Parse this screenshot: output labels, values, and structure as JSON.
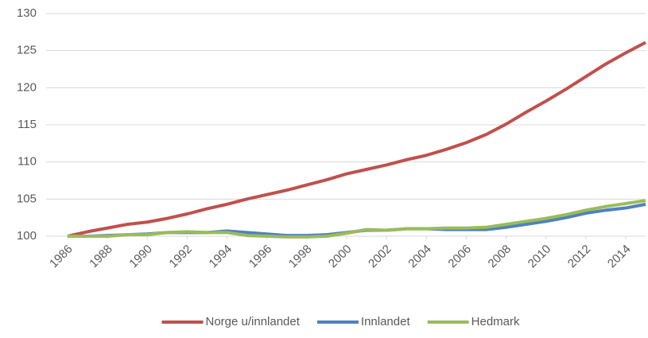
{
  "chart_data": {
    "type": "line",
    "x": [
      1986,
      1987,
      1988,
      1989,
      1990,
      1991,
      1992,
      1993,
      1994,
      1995,
      1996,
      1997,
      1998,
      1999,
      2000,
      2001,
      2002,
      2003,
      2004,
      2005,
      2006,
      2007,
      2008,
      2009,
      2010,
      2011,
      2012,
      2013,
      2014,
      2015
    ],
    "series": [
      {
        "name": "Norge u/innlandet",
        "color": "#c0504d",
        "values": [
          100,
          100.6,
          101.1,
          101.6,
          101.9,
          102.4,
          103.0,
          103.7,
          104.3,
          105.0,
          105.6,
          106.2,
          106.9,
          107.6,
          108.4,
          109.0,
          109.6,
          110.3,
          110.9,
          111.7,
          112.6,
          113.7,
          115.1,
          116.7,
          118.2,
          119.8,
          121.5,
          123.2,
          124.7,
          126.1
        ]
      },
      {
        "name": "Innlandet",
        "color": "#4f81bd",
        "values": [
          100,
          100.0,
          100.1,
          100.2,
          100.3,
          100.5,
          100.5,
          100.5,
          100.7,
          100.5,
          100.3,
          100.1,
          100.1,
          100.2,
          100.5,
          100.8,
          100.8,
          101.0,
          101.0,
          100.9,
          100.9,
          100.9,
          101.2,
          101.6,
          102.0,
          102.5,
          103.1,
          103.5,
          103.8,
          104.3
        ]
      },
      {
        "name": "Hedmark",
        "color": "#9bbb59",
        "values": [
          100,
          100.0,
          100.0,
          100.2,
          100.2,
          100.5,
          100.6,
          100.5,
          100.5,
          100.1,
          100.0,
          99.9,
          99.9,
          100.0,
          100.4,
          100.9,
          100.8,
          101.0,
          101.0,
          101.1,
          101.1,
          101.2,
          101.6,
          102.0,
          102.4,
          102.9,
          103.5,
          104.0,
          104.4,
          104.8
        ]
      }
    ],
    "xlim": [
      1986,
      2015
    ],
    "xticks": [
      1986,
      1988,
      1990,
      1992,
      1994,
      1996,
      1998,
      2000,
      2002,
      2004,
      2006,
      2008,
      2010,
      2012,
      2014
    ],
    "ylim": [
      100,
      130
    ],
    "yticks": [
      100,
      105,
      110,
      115,
      120,
      125,
      130
    ],
    "grid": true,
    "legend": "bottom"
  }
}
